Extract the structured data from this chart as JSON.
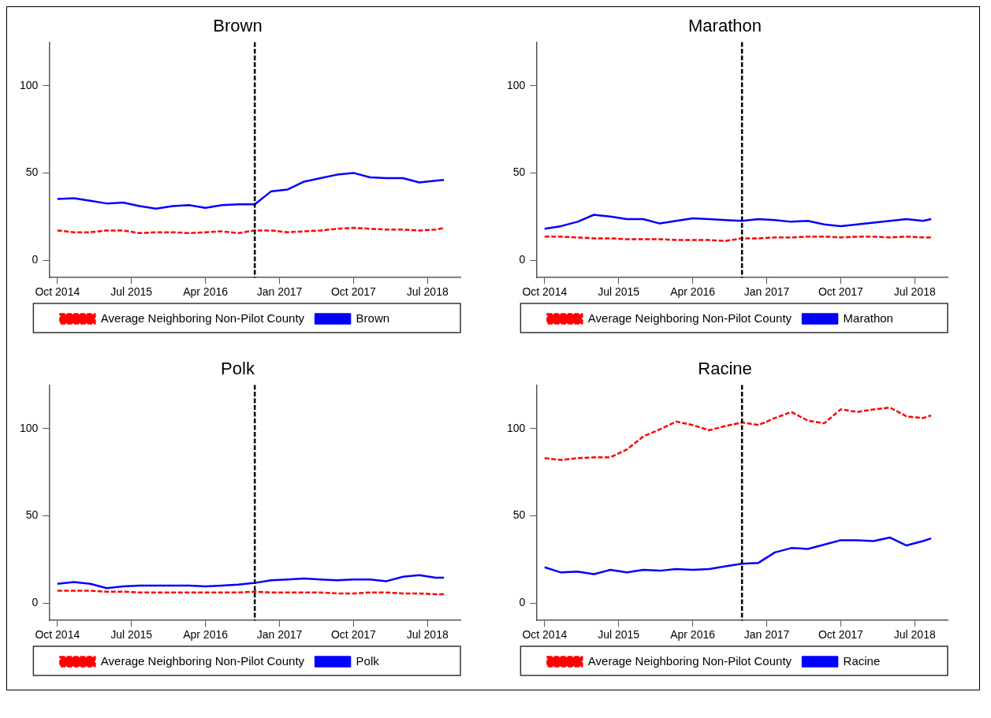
{
  "chart_data": [
    {
      "type": "line",
      "title": "Brown",
      "legend": "bottom",
      "marker": "none",
      "x": [
        "2014-10",
        "2014-12",
        "2015-02",
        "2015-04",
        "2015-06",
        "2015-08",
        "2015-10",
        "2015-12",
        "2016-02",
        "2016-04",
        "2016-06",
        "2016-08",
        "2016-10",
        "2016-12",
        "2017-02",
        "2017-04",
        "2017-06",
        "2017-08",
        "2017-10",
        "2017-12",
        "2018-02",
        "2018-04",
        "2018-06",
        "2018-08",
        "2018-09"
      ],
      "xlim": [
        "2014-09",
        "2018-11"
      ],
      "xticks": [
        {
          "value": "2014-10",
          "label": "Oct 2014"
        },
        {
          "value": "2015-07",
          "label": "Jul 2015"
        },
        {
          "value": "2016-04",
          "label": "Apr 2016"
        },
        {
          "value": "2017-01",
          "label": "Jan 2017"
        },
        {
          "value": "2017-10",
          "label": "Oct 2017"
        },
        {
          "value": "2018-07",
          "label": "Jul 2018"
        }
      ],
      "ylim": [
        -10,
        125
      ],
      "yticks": [
        0,
        50,
        100
      ],
      "ref_lines": [
        {
          "axis": "x",
          "value": "2016-10",
          "color": "#000000",
          "line_style": "dashed"
        }
      ],
      "series": [
        {
          "name": "Average Neighboring Non-Pilot County",
          "color": "#ff0000",
          "line_style": "dashed",
          "values": [
            17,
            16,
            16,
            17,
            17,
            15.5,
            16,
            16,
            15.5,
            16,
            16.5,
            15.5,
            17,
            17,
            16,
            16.5,
            17,
            18,
            18.5,
            18,
            17.5,
            17.5,
            17,
            17.5,
            18.5
          ]
        },
        {
          "name": "Brown",
          "color": "#0000ff",
          "line_style": "solid",
          "values": [
            35,
            35.5,
            34,
            32.5,
            33,
            31,
            29.5,
            31,
            31.5,
            30,
            31.5,
            32,
            32,
            39.5,
            40.5,
            45,
            47,
            49,
            50,
            47.5,
            47,
            47,
            44.5,
            45.5,
            46
          ]
        }
      ]
    },
    {
      "type": "line",
      "title": "Marathon",
      "legend": "bottom",
      "marker": "none",
      "x": [
        "2014-10",
        "2014-12",
        "2015-02",
        "2015-04",
        "2015-06",
        "2015-08",
        "2015-10",
        "2015-12",
        "2016-02",
        "2016-04",
        "2016-06",
        "2016-08",
        "2016-10",
        "2016-12",
        "2017-02",
        "2017-04",
        "2017-06",
        "2017-08",
        "2017-10",
        "2017-12",
        "2018-02",
        "2018-04",
        "2018-06",
        "2018-08",
        "2018-09"
      ],
      "xlim": [
        "2014-09",
        "2018-11"
      ],
      "xticks": [
        {
          "value": "2014-10",
          "label": "Oct 2014"
        },
        {
          "value": "2015-07",
          "label": "Jul 2015"
        },
        {
          "value": "2016-04",
          "label": "Apr 2016"
        },
        {
          "value": "2017-01",
          "label": "Jan 2017"
        },
        {
          "value": "2017-10",
          "label": "Oct 2017"
        },
        {
          "value": "2018-07",
          "label": "Jul 2018"
        }
      ],
      "ylim": [
        -10,
        125
      ],
      "yticks": [
        0,
        50,
        100
      ],
      "ref_lines": [
        {
          "axis": "x",
          "value": "2016-10",
          "color": "#000000",
          "line_style": "dashed"
        }
      ],
      "series": [
        {
          "name": "Average Neighboring Non-Pilot County",
          "color": "#ff0000",
          "line_style": "dashed",
          "values": [
            13.5,
            13.5,
            13,
            12.5,
            12.5,
            12,
            12,
            12,
            11.5,
            11.5,
            11.5,
            11,
            12.5,
            12.5,
            13,
            13,
            13.5,
            13.5,
            13,
            13.5,
            13.5,
            13,
            13.5,
            13,
            13
          ]
        },
        {
          "name": "Marathon",
          "color": "#0000ff",
          "line_style": "solid",
          "values": [
            18,
            19.5,
            22,
            26,
            25,
            23.5,
            23.5,
            21,
            22.5,
            24,
            23.5,
            23,
            22.5,
            23.5,
            23,
            22,
            22.5,
            20.5,
            19.5,
            20.5,
            21.5,
            22.5,
            23.5,
            22.5,
            23.5
          ]
        }
      ]
    },
    {
      "type": "line",
      "title": "Polk",
      "legend": "bottom",
      "marker": "none",
      "x": [
        "2014-10",
        "2014-12",
        "2015-02",
        "2015-04",
        "2015-06",
        "2015-08",
        "2015-10",
        "2015-12",
        "2016-02",
        "2016-04",
        "2016-06",
        "2016-08",
        "2016-10",
        "2016-12",
        "2017-02",
        "2017-04",
        "2017-06",
        "2017-08",
        "2017-10",
        "2017-12",
        "2018-02",
        "2018-04",
        "2018-06",
        "2018-08",
        "2018-09"
      ],
      "xlim": [
        "2014-09",
        "2018-11"
      ],
      "xticks": [
        {
          "value": "2014-10",
          "label": "Oct 2014"
        },
        {
          "value": "2015-07",
          "label": "Jul 2015"
        },
        {
          "value": "2016-04",
          "label": "Apr 2016"
        },
        {
          "value": "2017-01",
          "label": "Jan 2017"
        },
        {
          "value": "2017-10",
          "label": "Oct 2017"
        },
        {
          "value": "2018-07",
          "label": "Jul 2018"
        }
      ],
      "ylim": [
        -10,
        125
      ],
      "yticks": [
        0,
        50,
        100
      ],
      "ref_lines": [
        {
          "axis": "x",
          "value": "2016-10",
          "color": "#000000",
          "line_style": "dashed"
        }
      ],
      "series": [
        {
          "name": "Average Neighboring Non-Pilot County",
          "color": "#ff0000",
          "line_style": "dashed",
          "values": [
            7,
            7,
            7,
            6.5,
            6.5,
            6,
            6,
            6,
            6,
            6,
            6,
            6,
            6.5,
            6,
            6,
            6,
            6,
            5.5,
            5.5,
            6,
            6,
            5.5,
            5.5,
            5,
            5
          ]
        },
        {
          "name": "Polk",
          "color": "#0000ff",
          "line_style": "solid",
          "values": [
            11,
            12,
            11,
            8.5,
            9.5,
            10,
            10,
            10,
            10,
            9.5,
            10,
            10.5,
            11.5,
            13,
            13.5,
            14,
            13.5,
            13,
            13.5,
            13.5,
            12.5,
            15,
            16,
            14.5,
            14.5
          ]
        }
      ]
    },
    {
      "type": "line",
      "title": "Racine",
      "legend": "bottom",
      "marker": "none",
      "x": [
        "2014-10",
        "2014-12",
        "2015-02",
        "2015-04",
        "2015-06",
        "2015-08",
        "2015-10",
        "2015-12",
        "2016-02",
        "2016-04",
        "2016-06",
        "2016-08",
        "2016-10",
        "2016-12",
        "2017-02",
        "2017-04",
        "2017-06",
        "2017-08",
        "2017-10",
        "2017-12",
        "2018-02",
        "2018-04",
        "2018-06",
        "2018-08",
        "2018-09"
      ],
      "xlim": [
        "2014-09",
        "2018-11"
      ],
      "xticks": [
        {
          "value": "2014-10",
          "label": "Oct 2014"
        },
        {
          "value": "2015-07",
          "label": "Jul 2015"
        },
        {
          "value": "2016-04",
          "label": "Apr 2016"
        },
        {
          "value": "2017-01",
          "label": "Jan 2017"
        },
        {
          "value": "2017-10",
          "label": "Oct 2017"
        },
        {
          "value": "2018-07",
          "label": "Jul 2018"
        }
      ],
      "ylim": [
        -10,
        125
      ],
      "yticks": [
        0,
        50,
        100
      ],
      "ref_lines": [
        {
          "axis": "x",
          "value": "2016-10",
          "color": "#000000",
          "line_style": "dashed"
        }
      ],
      "series": [
        {
          "name": "Average Neighboring Non-Pilot County",
          "color": "#ff0000",
          "line_style": "dashed",
          "values": [
            83,
            82,
            83,
            83.5,
            83.5,
            88,
            95.5,
            99.5,
            104,
            102,
            99,
            101.5,
            103.5,
            102,
            106,
            109.5,
            104.5,
            103,
            111,
            109.5,
            111,
            112,
            107,
            106,
            107.5
          ]
        },
        {
          "name": "Racine",
          "color": "#0000ff",
          "line_style": "solid",
          "values": [
            20.5,
            17.5,
            18,
            16.5,
            19,
            17.5,
            19,
            18.5,
            19.5,
            19,
            19.5,
            21,
            22.5,
            23,
            29,
            31.5,
            31,
            33.5,
            36,
            36,
            35.5,
            37.5,
            33,
            35.5,
            37
          ]
        }
      ]
    }
  ]
}
